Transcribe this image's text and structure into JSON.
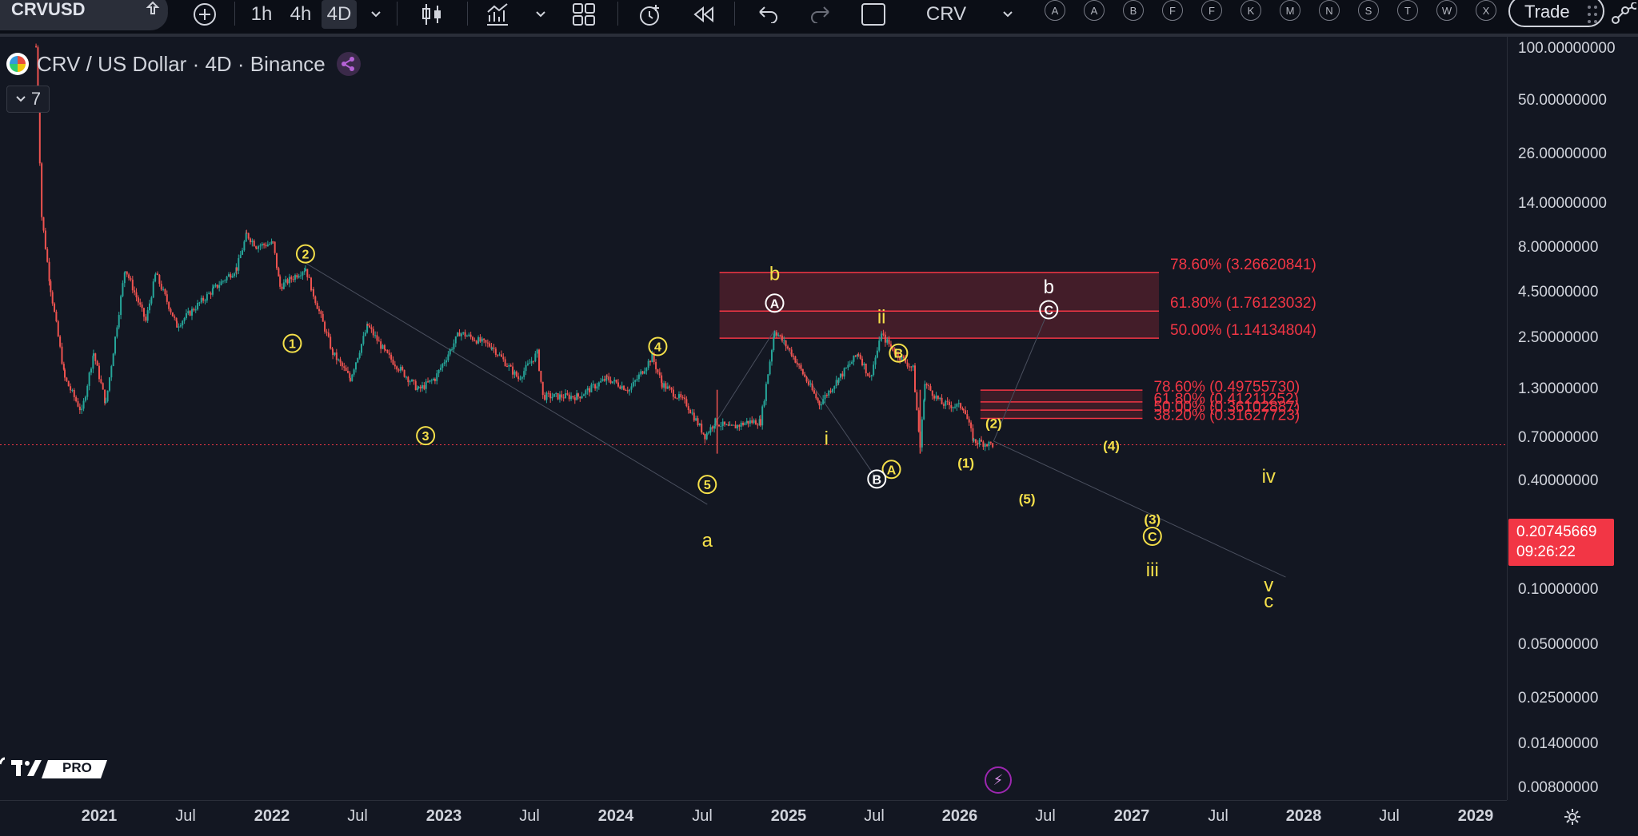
{
  "toolbar": {
    "symbol": "CRVUSD",
    "intervals": [
      "1h",
      "4h",
      "4D"
    ],
    "active_interval": "4D",
    "watch_symbol": "CRV",
    "letters": [
      "A",
      "A",
      "B",
      "F",
      "F",
      "K",
      "M",
      "N",
      "S",
      "T",
      "W",
      "X"
    ],
    "trade_label": "Trade"
  },
  "header": {
    "title": "CRV / US Dollar · 4D · Binance",
    "indicator_count": "7"
  },
  "price_axis": {
    "ticks": [
      "100.00000000",
      "50.00000000",
      "26.00000000",
      "14.00000000",
      "8.00000000",
      "4.50000000",
      "2.50000000",
      "1.30000000",
      "0.70000000",
      "0.40000000",
      "0.10000000",
      "0.05000000",
      "0.02500000",
      "0.01400000",
      "0.00800000"
    ],
    "current_price": "0.20745669",
    "countdown": "09:26:22"
  },
  "time_axis": {
    "ticks": [
      "2021",
      "Jul",
      "2022",
      "Jul",
      "2023",
      "Jul",
      "2024",
      "Jul",
      "2025",
      "Jul",
      "2026",
      "Jul",
      "2027",
      "Jul",
      "2028",
      "Jul",
      "2029"
    ]
  },
  "logo": {
    "badge": "PRO"
  },
  "colors": {
    "background": "#131722",
    "up": "#26a69a",
    "down": "#ef5350",
    "wave": "#f5e04a",
    "fib": "#f23645",
    "white_wave": "#ffffff"
  },
  "chart_data": {
    "type": "candlestick",
    "y_scale": "log",
    "ylim": [
      0.006,
      130
    ],
    "xlim": [
      "2020-06-15",
      "2029-06-01"
    ],
    "current_price": 0.20745669,
    "ohlc_path": [
      [
        "2020-08-20",
        120
      ],
      [
        "2020-09-01",
        8
      ],
      [
        "2020-09-20",
        2.5
      ],
      [
        "2020-10-20",
        0.6
      ],
      [
        "2020-11-25",
        0.35
      ],
      [
        "2020-12-20",
        0.9
      ],
      [
        "2021-01-15",
        0.4
      ],
      [
        "2021-02-25",
        3.5
      ],
      [
        "2021-04-10",
        1.5
      ],
      [
        "2021-05-01",
        3.2
      ],
      [
        "2021-06-15",
        1.4
      ],
      [
        "2021-09-01",
        2.5
      ],
      [
        "2021-10-20",
        3.5
      ],
      [
        "2021-11-10",
        6.0
      ],
      [
        "2021-12-01",
        5.0
      ],
      [
        "2022-01-05",
        5.2
      ],
      [
        "2022-01-20",
        2.6
      ],
      [
        "2022-03-15",
        3.5
      ],
      [
        "2022-04-01",
        2.3
      ],
      [
        "2022-05-12",
        0.9
      ],
      [
        "2022-06-18",
        0.6
      ],
      [
        "2022-07-25",
        1.4
      ],
      [
        "2022-09-01",
        0.9
      ],
      [
        "2022-11-10",
        0.5
      ],
      [
        "2022-12-15",
        0.6
      ],
      [
        "2023-02-05",
        1.25
      ],
      [
        "2023-04-15",
        1.0
      ],
      [
        "2023-06-10",
        0.6
      ],
      [
        "2023-07-20",
        0.9
      ],
      [
        "2023-08-01",
        0.45
      ],
      [
        "2023-10-15",
        0.45
      ],
      [
        "2023-12-15",
        0.6
      ],
      [
        "2024-02-01",
        0.5
      ],
      [
        "2024-03-20",
        0.85
      ],
      [
        "2024-04-10",
        0.55
      ],
      [
        "2024-06-01",
        0.4
      ],
      [
        "2024-07-10",
        0.24
      ],
      [
        "2024-08-01",
        0.3
      ],
      [
        "2024-09-01",
        0.27
      ],
      [
        "2024-10-10",
        0.3
      ],
      [
        "2024-11-05",
        0.3
      ],
      [
        "2024-12-05",
        1.3
      ],
      [
        "2025-01-10",
        0.9
      ],
      [
        "2025-03-10",
        0.4
      ],
      [
        "2025-04-20",
        0.6
      ],
      [
        "2025-06-01",
        0.9
      ],
      [
        "2025-06-25",
        0.6
      ],
      [
        "2025-07-20",
        1.2
      ],
      [
        "2025-08-20",
        0.9
      ],
      [
        "2025-09-25",
        0.7
      ],
      [
        "2025-10-10",
        0.2
      ],
      [
        "2025-10-20",
        0.55
      ],
      [
        "2025-11-25",
        0.4
      ],
      [
        "2026-01-10",
        0.38
      ],
      [
        "2026-02-01",
        0.22
      ],
      [
        "2026-03-15",
        0.2075
      ]
    ],
    "waves": [
      {
        "label": "1",
        "style": "circle",
        "date": "2022-02-15",
        "price": 1.05
      },
      {
        "label": "2",
        "style": "circle",
        "date": "2022-03-15",
        "price": 4.4
      },
      {
        "label": "3",
        "style": "circle",
        "date": "2022-11-25",
        "price": 0.24
      },
      {
        "label": "4",
        "style": "circle",
        "date": "2024-04-01",
        "price": 1.0
      },
      {
        "label": "5",
        "style": "circle",
        "date": "2024-07-15",
        "price": 0.11
      },
      {
        "label": "a",
        "style": "plain",
        "date": "2024-07-15",
        "price": 0.045
      },
      {
        "label": "b",
        "style": "plain",
        "date": "2024-12-05",
        "price": 3.2
      },
      {
        "label": "A",
        "style": "circle-white",
        "date": "2024-12-05",
        "price": 2.0
      },
      {
        "label": "ii",
        "style": "plain",
        "date": "2025-07-20",
        "price": 1.6
      },
      {
        "label": "i",
        "style": "plain",
        "date": "2025-03-25",
        "price": 0.23
      },
      {
        "label": "B",
        "style": "circle",
        "date": "2025-08-25",
        "price": 0.9
      },
      {
        "label": "A",
        "style": "circle",
        "date": "2025-08-10",
        "price": 0.14
      },
      {
        "label": "B",
        "style": "circle-white",
        "date": "2025-07-10",
        "price": 0.12
      },
      {
        "label": "(1)",
        "style": "plain-small",
        "date": "2026-01-15",
        "price": 0.16
      },
      {
        "label": "(2)",
        "style": "plain-small",
        "date": "2026-03-15",
        "price": 0.3
      },
      {
        "label": "(4)",
        "style": "plain-small",
        "date": "2026-11-20",
        "price": 0.21
      },
      {
        "label": "(5)",
        "style": "plain-small",
        "date": "2026-05-25",
        "price": 0.09
      },
      {
        "label": "(3)",
        "style": "plain-small",
        "date": "2027-02-15",
        "price": 0.065
      },
      {
        "label": "C",
        "style": "circle",
        "date": "2027-02-15",
        "price": 0.048
      },
      {
        "label": "iii",
        "style": "plain",
        "date": "2027-02-15",
        "price": 0.028
      },
      {
        "label": "iv",
        "style": "plain",
        "date": "2027-10-20",
        "price": 0.125
      },
      {
        "label": "v",
        "style": "plain",
        "date": "2027-10-20",
        "price": 0.022
      },
      {
        "label": "c",
        "style": "plain",
        "date": "2027-10-20",
        "price": 0.017
      },
      {
        "label": "b",
        "style": "plain-white",
        "date": "2026-07-10",
        "price": 2.6
      },
      {
        "label": "C",
        "style": "circle-white",
        "date": "2026-07-10",
        "price": 1.8
      }
    ],
    "fib_levels_upper": [
      {
        "label": "78.60% (3.26620841)",
        "price": 3.26620841
      },
      {
        "label": "61.80% (1.76123032)",
        "price": 1.76123032
      },
      {
        "label": "50.00% (1.14134804)",
        "price": 1.14134804
      }
    ],
    "fib_levels_lower": [
      {
        "label": "78.60% (0.49755730)",
        "price": 0.4975573
      },
      {
        "label": "61.80% (0.41211252)",
        "price": 0.41211252
      },
      {
        "label": "50.00% (0.36102887)",
        "price": 0.36102887
      },
      {
        "label": "38.20% (0.31627723)",
        "price": 0.31627723
      }
    ],
    "fib_upper_range": [
      "2024-08-10",
      "2027-03-01"
    ],
    "fib_lower_range": [
      "2026-02-15",
      "2027-01-25"
    ]
  }
}
